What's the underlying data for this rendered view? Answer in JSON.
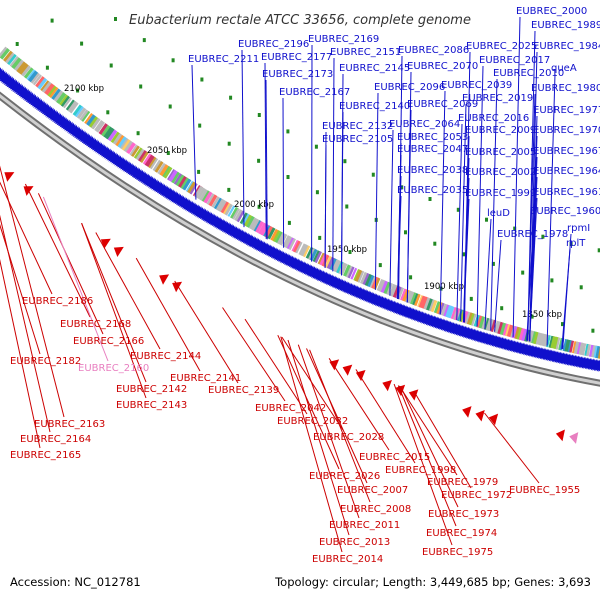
{
  "header": {
    "title": "Eubacterium rectale ATCC 33656, complete genome"
  },
  "footer": {
    "accession": "Accession: NC_012781",
    "summary": "Topology: circular; Length: 3,449,685 bp; Genes: 3,693"
  },
  "colors": {
    "forward": "#1010cc",
    "reverse": "#dd0000",
    "pseudo": "#e87fc0",
    "backbone": "#909090"
  },
  "ticks": [
    "2100 kbp",
    "2050 kbp",
    "2000 kbp",
    "1950 kbp",
    "1900 kbp",
    "1850 kbp"
  ],
  "forward_labels": [
    "EUBREC_2000",
    "EUBREC_1989",
    "EUBREC_2196",
    "EUBREC_2169",
    "EUBREC_2151",
    "EUBREC_2086",
    "EUBREC_2025",
    "EUBREC_1984",
    "EUBREC_2211",
    "EUBREC_2177",
    "EUBREC_2017",
    "EUBREC_2173",
    "EUBREC_2145",
    "EUBREC_2070",
    "EUBREC_2010",
    "queA",
    "EUBREC_2167",
    "EUBREC_2096",
    "EUBREC_2039",
    "EUBREC_1980",
    "EUBREC_2140",
    "EUBREC_2069",
    "EUBREC_2019",
    "EUBREC_1977",
    "EUBREC_2016",
    "EUBREC_2132",
    "EUBREC_2064",
    "EUBREC_2009",
    "EUBREC_1970",
    "EUBREC_2105",
    "EUBREC_2053",
    "EUBREC_2047",
    "EUBREC_2005",
    "EUBREC_1967",
    "EUBREC_2038",
    "EUBREC_2002",
    "EUBREC_1964",
    "EUBREC_2035",
    "EUBREC_1999",
    "EUBREC_1961",
    "leuD",
    "EUBREC_1960",
    "rpmI",
    "EUBREC_1978",
    "rplT"
  ],
  "reverse_labels": [
    "EUBREC_2186",
    "EUBREC_2168",
    "EUBREC_2166",
    "EUBREC_2182",
    "EUBREC_2160",
    "EUBREC_2144",
    "EUBREC_2142",
    "EUBREC_2141",
    "EUBREC_2139",
    "EUBREC_2143",
    "EUBREC_2042",
    "EUBREC_2032",
    "EUBREC_2163",
    "EUBREC_2028",
    "EUBREC_2164",
    "EUBREC_2165",
    "EUBREC_2015",
    "EUBREC_1998",
    "EUBREC_2026",
    "EUBREC_1979",
    "EUBREC_2007",
    "EUBREC_1972",
    "EUBREC_1955",
    "EUBREC_2008",
    "EUBREC_1973",
    "EUBREC_2011",
    "EUBREC_1974",
    "EUBREC_2013",
    "EUBREC_1975",
    "EUBREC_2014"
  ]
}
